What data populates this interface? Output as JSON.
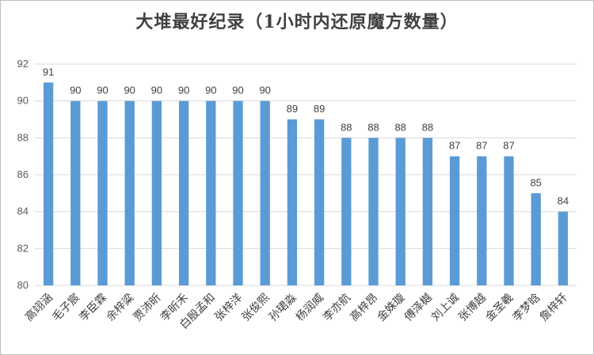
{
  "chart_data": {
    "type": "bar",
    "title": "大堆最好纪录（1小时内还原魔方数量）",
    "xlabel": "",
    "ylabel": "",
    "categories": [
      "高翊涵",
      "毛子宸",
      "李臣霖",
      "余梓粱",
      "贾沛昕",
      "李昕禾",
      "白殷孟和",
      "张梓洋",
      "张俊熙",
      "孙珺淼",
      "杨润威",
      "李亦航",
      "高梓昂",
      "金姝璇",
      "傅泽樾",
      "刘上诚",
      "张博越",
      "金圣羲",
      "李梦晗",
      "詹梓轩"
    ],
    "values": [
      91,
      90,
      90,
      90,
      90,
      90,
      90,
      90,
      90,
      89,
      89,
      88,
      88,
      88,
      88,
      87,
      87,
      87,
      85,
      84
    ],
    "ylim": [
      80,
      92
    ],
    "yticks": [
      80,
      82,
      84,
      86,
      88,
      90,
      92
    ],
    "grid": true,
    "legend": "none",
    "bar_color": "#5b9bd5",
    "grid_color": "#d9d9d9"
  }
}
